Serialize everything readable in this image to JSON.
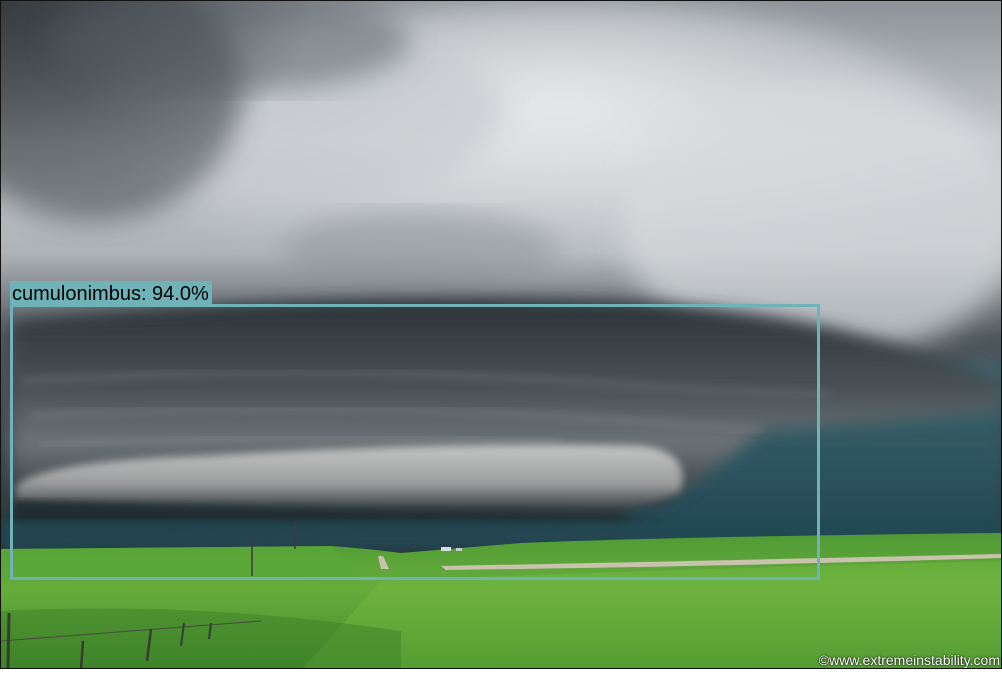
{
  "detection": {
    "label": "cumulonimbus: 94.0%",
    "category": "cumulonimbus",
    "confidence_percent": 94.0,
    "box_color": "#6fb3b8"
  },
  "watermark": {
    "text": "©www.extremeinstability.com"
  },
  "colors": {
    "sky_light": "#cfd2d6",
    "storm_dark": "#2b3439",
    "distant_sky": "#2f5560",
    "grass": "#5fa83a"
  }
}
